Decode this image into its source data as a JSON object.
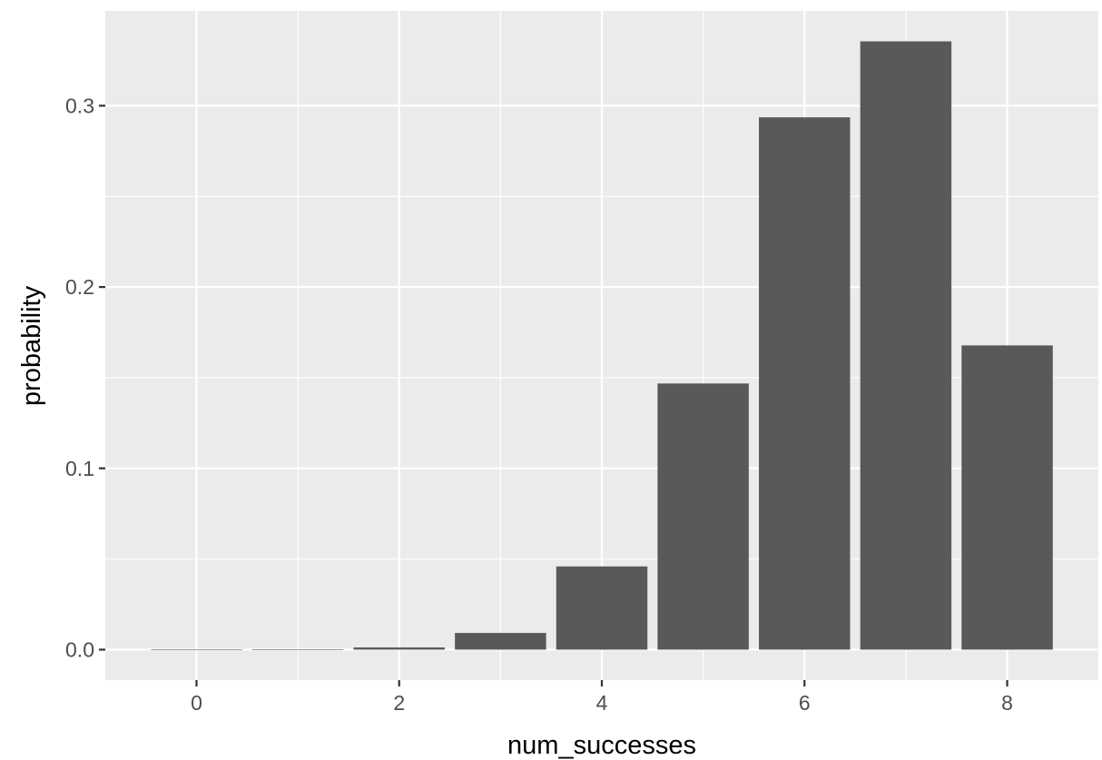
{
  "chart_data": {
    "type": "bar",
    "title": "",
    "xlabel": "num_successes",
    "ylabel": "probability",
    "x": [
      0,
      1,
      2,
      3,
      4,
      5,
      6,
      7,
      8
    ],
    "values": [
      0.0,
      0.0002,
      0.0012,
      0.0092,
      0.0459,
      0.1468,
      0.2936,
      0.3355,
      0.1678
    ],
    "xlim": [
      -0.9,
      8.9
    ],
    "ylim": [
      -0.0168,
      0.3523
    ],
    "x_ticks": [
      {
        "value": 0,
        "label": "0"
      },
      {
        "value": 2,
        "label": "2"
      },
      {
        "value": 4,
        "label": "4"
      },
      {
        "value": 6,
        "label": "6"
      },
      {
        "value": 8,
        "label": "8"
      }
    ],
    "y_ticks": [
      {
        "value": 0.0,
        "label": "0.0"
      },
      {
        "value": 0.1,
        "label": "0.1"
      },
      {
        "value": 0.2,
        "label": "0.2"
      },
      {
        "value": 0.3,
        "label": "0.3"
      }
    ],
    "x_minor_gridlines": [
      1,
      3,
      5,
      7
    ],
    "y_minor_gridlines": [
      0.05,
      0.15,
      0.25
    ],
    "bar_width": 0.9,
    "grid": true,
    "legend": "none",
    "colors": {
      "panel_background": "#ebebeb",
      "grid_line": "#ffffff",
      "bar_fill": "#595959",
      "tick_mark": "#333333",
      "tick_label": "#4d4d4d",
      "axis_title": "#000000"
    }
  }
}
